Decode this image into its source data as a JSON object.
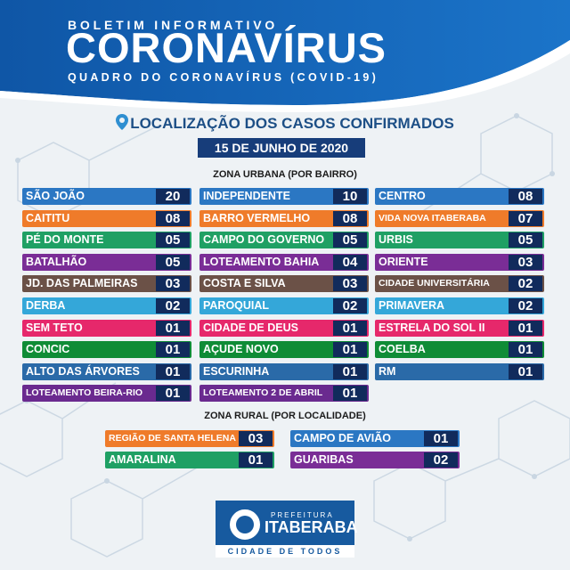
{
  "header": {
    "kicker": "BOLETIM INFORMATIVO",
    "title": "CORONAVÍRUS",
    "subtitle": "QUADRO DO CORONAVÍRUS (COVID-19)"
  },
  "location_title": "LOCALIZAÇÃO DOS CASOS CONFIRMADOS",
  "date": "15 DE JUNHO DE 2020",
  "urban": {
    "label": "ZONA URBANA (POR BAIRRO)",
    "columns": [
      [
        {
          "name": "SÃO JOÃO",
          "count": "20",
          "color": "#2b77c3"
        },
        {
          "name": "CAITITU",
          "count": "08",
          "color": "#ef7b2a"
        },
        {
          "name": "PÉ DO MONTE",
          "count": "05",
          "color": "#1fa064"
        },
        {
          "name": "BATALHÃO",
          "count": "05",
          "color": "#7a2d96"
        },
        {
          "name": "JD. DAS PALMEIRAS",
          "count": "03",
          "color": "#6b5147"
        },
        {
          "name": "DERBA",
          "count": "02",
          "color": "#34a7d9"
        },
        {
          "name": "SEM TETO",
          "count": "01",
          "color": "#e6286b"
        },
        {
          "name": "CONCIC",
          "count": "01",
          "color": "#0f8c36"
        },
        {
          "name": "ALTO DAS ÁRVORES",
          "count": "01",
          "color": "#2a6aa8"
        },
        {
          "name": "LOTEAMENTO BEIRA-RIO",
          "count": "01",
          "color": "#6a2a8f",
          "small": true
        }
      ],
      [
        {
          "name": "INDEPENDENTE",
          "count": "10",
          "color": "#2b77c3"
        },
        {
          "name": "BARRO VERMELHO",
          "count": "08",
          "color": "#ef7b2a"
        },
        {
          "name": "CAMPO DO GOVERNO",
          "count": "05",
          "color": "#1fa064"
        },
        {
          "name": "LOTEAMENTO BAHIA",
          "count": "04",
          "color": "#7a2d96"
        },
        {
          "name": "COSTA E SILVA",
          "count": "03",
          "color": "#6b5147"
        },
        {
          "name": "PAROQUIAL",
          "count": "02",
          "color": "#34a7d9"
        },
        {
          "name": "CIDADE DE DEUS",
          "count": "01",
          "color": "#e6286b"
        },
        {
          "name": "AÇUDE NOVO",
          "count": "01",
          "color": "#0f8c36"
        },
        {
          "name": "ESCURINHA",
          "count": "01",
          "color": "#2a6aa8"
        },
        {
          "name": "LOTEAMENTO 2 DE ABRIL",
          "count": "01",
          "color": "#6a2a8f",
          "small": true
        }
      ],
      [
        {
          "name": "CENTRO",
          "count": "08",
          "color": "#2b77c3"
        },
        {
          "name": "VIDA NOVA ITABERABA",
          "count": "07",
          "color": "#ef7b2a",
          "small": true
        },
        {
          "name": "URBIS",
          "count": "05",
          "color": "#1fa064"
        },
        {
          "name": "ORIENTE",
          "count": "03",
          "color": "#7a2d96"
        },
        {
          "name": "CIDADE UNIVERSITÁRIA",
          "count": "02",
          "color": "#6b5147",
          "small": true
        },
        {
          "name": "PRIMAVERA",
          "count": "02",
          "color": "#34a7d9"
        },
        {
          "name": "ESTRELA DO SOL II",
          "count": "01",
          "color": "#e6286b"
        },
        {
          "name": "COELBA",
          "count": "01",
          "color": "#0f8c36"
        },
        {
          "name": "RM",
          "count": "01",
          "color": "#2a6aa8"
        }
      ]
    ]
  },
  "rural": {
    "label": "ZONA RURAL (POR LOCALIDADE)",
    "columns": [
      [
        {
          "name": "REGIÃO DE SANTA HELENA",
          "count": "03",
          "color": "#ef7b2a",
          "small": true
        },
        {
          "name": "AMARALINA",
          "count": "01",
          "color": "#1fa064"
        }
      ],
      [
        {
          "name": "CAMPO DE AVIÃO",
          "count": "01",
          "color": "#2b77c3"
        },
        {
          "name": "GUARIBAS",
          "count": "02",
          "color": "#7a2d96"
        }
      ]
    ]
  },
  "logo": {
    "prefeitura": "PREFEITURA",
    "city": "ITABERABA",
    "motto": "CIDADE DE TODOS"
  }
}
